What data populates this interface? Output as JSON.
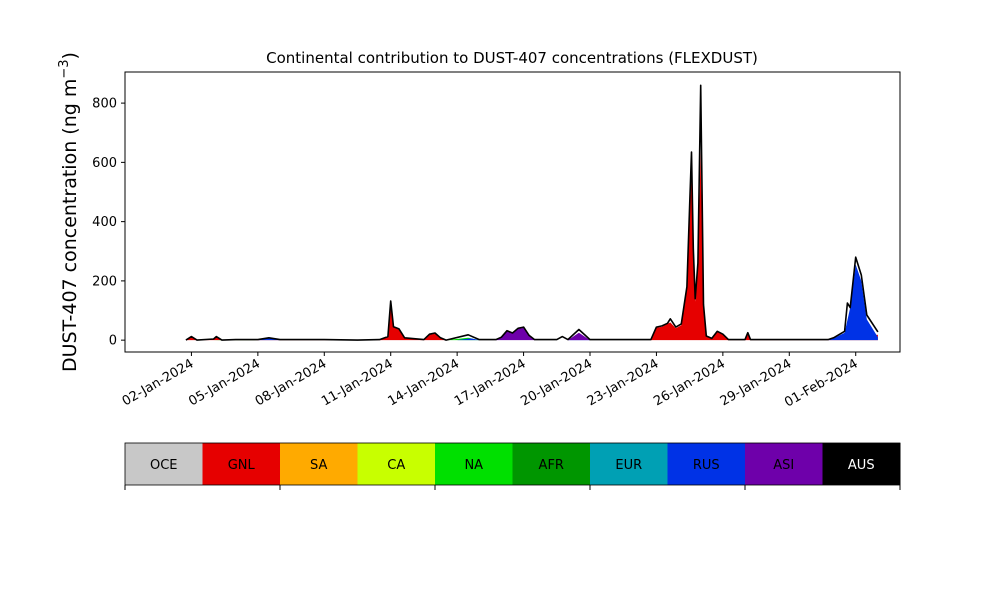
{
  "chart_data": {
    "type": "area",
    "stacked": true,
    "title": "Continental contribution to DUST-407 concentrations (FLEXDUST)",
    "ylabel": "DUST-407 concentration (ng m",
    "ylabel_unit_exponent": "−3",
    "ylabel_close": ")",
    "xlabel": "",
    "ylim": [
      -40,
      905
    ],
    "yticks": [
      0,
      200,
      400,
      600,
      800
    ],
    "xlim": [
      "2023-12-30",
      "2024-02-03"
    ],
    "xtick_labels": [
      "02-Jan-2024",
      "05-Jan-2024",
      "08-Jan-2024",
      "11-Jan-2024",
      "14-Jan-2024",
      "17-Jan-2024",
      "20-Jan-2024",
      "23-Jan-2024",
      "26-Jan-2024",
      "29-Jan-2024",
      "01-Feb-2024"
    ],
    "xtick_dates": [
      "2024-01-02",
      "2024-01-05",
      "2024-01-08",
      "2024-01-11",
      "2024-01-14",
      "2024-01-17",
      "2024-01-20",
      "2024-01-23",
      "2024-01-26",
      "2024-01-29",
      "2024-02-01"
    ],
    "grid": false,
    "series": [
      {
        "name": "GNL",
        "color": "#e60000",
        "points": [
          [
            "2024-01-01T18:00",
            0
          ],
          [
            "2024-01-02T00:00",
            12
          ],
          [
            "2024-01-02T06:00",
            0
          ],
          [
            "2024-01-03T00:00",
            4
          ],
          [
            "2024-01-03T03:00",
            12
          ],
          [
            "2024-01-03T09:00",
            0
          ],
          [
            "2024-01-05T00:00",
            2
          ],
          [
            "2024-01-09T12:00",
            0
          ],
          [
            "2024-01-10T12:00",
            2
          ],
          [
            "2024-01-10T21:00",
            12
          ],
          [
            "2024-01-11T00:00",
            118
          ],
          [
            "2024-01-11T03:00",
            45
          ],
          [
            "2024-01-11T09:00",
            38
          ],
          [
            "2024-01-11T15:00",
            8
          ],
          [
            "2024-01-12T12:00",
            2
          ],
          [
            "2024-01-12T18:00",
            18
          ],
          [
            "2024-01-13T00:00",
            22
          ],
          [
            "2024-01-13T06:00",
            8
          ],
          [
            "2024-01-13T12:00",
            0
          ],
          [
            "2024-01-22T18:00",
            0
          ],
          [
            "2024-01-23T00:00",
            42
          ],
          [
            "2024-01-23T06:00",
            45
          ],
          [
            "2024-01-23T12:00",
            55
          ],
          [
            "2024-01-23T15:00",
            60
          ],
          [
            "2024-01-23T21:00",
            40
          ],
          [
            "2024-01-24T03:00",
            50
          ],
          [
            "2024-01-24T09:00",
            170
          ],
          [
            "2024-01-24T12:00",
            420
          ],
          [
            "2024-01-24T14:00",
            560
          ],
          [
            "2024-01-24T16:00",
            300
          ],
          [
            "2024-01-24T18:00",
            130
          ],
          [
            "2024-01-24T21:00",
            250
          ],
          [
            "2024-01-25T00:00",
            640
          ],
          [
            "2024-01-25T03:00",
            110
          ],
          [
            "2024-01-25T06:00",
            12
          ],
          [
            "2024-01-25T12:00",
            5
          ],
          [
            "2024-01-25T18:00",
            28
          ],
          [
            "2024-01-26T00:00",
            18
          ],
          [
            "2024-01-26T06:00",
            2
          ],
          [
            "2024-01-27T00:00",
            2
          ],
          [
            "2024-01-27T03:00",
            20
          ],
          [
            "2024-01-27T06:00",
            2
          ],
          [
            "2024-01-31T12:00",
            2
          ],
          [
            "2024-02-01T00:00",
            15
          ],
          [
            "2024-02-01T12:00",
            15
          ],
          [
            "2024-02-02T00:00",
            18
          ]
        ]
      },
      {
        "name": "NA",
        "color": "#00e000",
        "points": [
          [
            "2024-01-03T00:00",
            0
          ],
          [
            "2024-01-04T00:00",
            2
          ],
          [
            "2024-01-05T00:00",
            0
          ],
          [
            "2024-01-13T12:00",
            0
          ],
          [
            "2024-01-14T12:00",
            8
          ],
          [
            "2024-01-15T00:00",
            0
          ]
        ]
      },
      {
        "name": "RUS",
        "color": "#0032e6",
        "points": [
          [
            "2024-01-05T00:00",
            0
          ],
          [
            "2024-01-05T12:00",
            8
          ],
          [
            "2024-01-06T00:00",
            0
          ],
          [
            "2024-01-14T00:00",
            0
          ],
          [
            "2024-01-14T15:00",
            6
          ],
          [
            "2024-01-15T00:00",
            0
          ],
          [
            "2024-01-19T00:00",
            0
          ],
          [
            "2024-01-19T12:00",
            8
          ],
          [
            "2024-01-20T00:00",
            0
          ],
          [
            "2024-01-30T18:00",
            0
          ],
          [
            "2024-01-31T00:00",
            6
          ],
          [
            "2024-01-31T12:00",
            25
          ],
          [
            "2024-01-31T18:00",
            110
          ],
          [
            "2024-02-01T00:00",
            255
          ],
          [
            "2024-02-01T06:00",
            200
          ],
          [
            "2024-02-01T12:00",
            70
          ],
          [
            "2024-02-02T00:00",
            10
          ]
        ]
      },
      {
        "name": "ASI",
        "color": "#6e00aa",
        "points": [
          [
            "2024-01-15T18:00",
            0
          ],
          [
            "2024-01-16T00:00",
            8
          ],
          [
            "2024-01-16T06:00",
            30
          ],
          [
            "2024-01-16T12:00",
            22
          ],
          [
            "2024-01-16T18:00",
            38
          ],
          [
            "2024-01-17T00:00",
            42
          ],
          [
            "2024-01-17T06:00",
            15
          ],
          [
            "2024-01-17T12:00",
            0
          ],
          [
            "2024-01-19T00:00",
            0
          ],
          [
            "2024-01-19T12:00",
            25
          ],
          [
            "2024-01-20T00:00",
            0
          ]
        ]
      }
    ],
    "total": {
      "name": "AUS",
      "color": "#000000",
      "points": [
        [
          "2024-01-01T18:00",
          0
        ],
        [
          "2024-01-02T00:00",
          12
        ],
        [
          "2024-01-02T06:00",
          0
        ],
        [
          "2024-01-03T00:00",
          4
        ],
        [
          "2024-01-03T03:00",
          12
        ],
        [
          "2024-01-03T09:00",
          0
        ],
        [
          "2024-01-04T00:00",
          2
        ],
        [
          "2024-01-05T00:00",
          2
        ],
        [
          "2024-01-05T12:00",
          8
        ],
        [
          "2024-01-06T00:00",
          2
        ],
        [
          "2024-01-08T00:00",
          2
        ],
        [
          "2024-01-09T12:00",
          0
        ],
        [
          "2024-01-10T12:00",
          2
        ],
        [
          "2024-01-10T21:00",
          12
        ],
        [
          "2024-01-11T00:00",
          132
        ],
        [
          "2024-01-11T03:00",
          45
        ],
        [
          "2024-01-11T09:00",
          38
        ],
        [
          "2024-01-11T15:00",
          8
        ],
        [
          "2024-01-12T12:00",
          2
        ],
        [
          "2024-01-12T18:00",
          20
        ],
        [
          "2024-01-13T00:00",
          24
        ],
        [
          "2024-01-13T06:00",
          8
        ],
        [
          "2024-01-13T12:00",
          0
        ],
        [
          "2024-01-14T12:00",
          18
        ],
        [
          "2024-01-15T00:00",
          2
        ],
        [
          "2024-01-15T18:00",
          2
        ],
        [
          "2024-01-16T00:00",
          10
        ],
        [
          "2024-01-16T06:00",
          32
        ],
        [
          "2024-01-16T12:00",
          24
        ],
        [
          "2024-01-16T18:00",
          40
        ],
        [
          "2024-01-17T00:00",
          44
        ],
        [
          "2024-01-17T06:00",
          16
        ],
        [
          "2024-01-17T12:00",
          2
        ],
        [
          "2024-01-18T12:00",
          2
        ],
        [
          "2024-01-18T18:00",
          12
        ],
        [
          "2024-01-19T00:00",
          2
        ],
        [
          "2024-01-19T12:00",
          36
        ],
        [
          "2024-01-20T00:00",
          2
        ],
        [
          "2024-01-22T18:00",
          2
        ],
        [
          "2024-01-23T00:00",
          44
        ],
        [
          "2024-01-23T06:00",
          48
        ],
        [
          "2024-01-23T12:00",
          57
        ],
        [
          "2024-01-23T15:00",
          72
        ],
        [
          "2024-01-23T21:00",
          44
        ],
        [
          "2024-01-24T03:00",
          55
        ],
        [
          "2024-01-24T09:00",
          180
        ],
        [
          "2024-01-24T12:00",
          450
        ],
        [
          "2024-01-24T14:00",
          635
        ],
        [
          "2024-01-24T16:00",
          310
        ],
        [
          "2024-01-24T18:00",
          140
        ],
        [
          "2024-01-24T21:00",
          260
        ],
        [
          "2024-01-25T00:00",
          860
        ],
        [
          "2024-01-25T03:00",
          120
        ],
        [
          "2024-01-25T06:00",
          14
        ],
        [
          "2024-01-25T12:00",
          6
        ],
        [
          "2024-01-25T18:00",
          30
        ],
        [
          "2024-01-26T00:00",
          20
        ],
        [
          "2024-01-26T06:00",
          2
        ],
        [
          "2024-01-27T00:00",
          2
        ],
        [
          "2024-01-27T03:00",
          25
        ],
        [
          "2024-01-27T06:00",
          2
        ],
        [
          "2024-01-30T18:00",
          2
        ],
        [
          "2024-01-31T00:00",
          8
        ],
        [
          "2024-01-31T12:00",
          30
        ],
        [
          "2024-01-31T15:00",
          125
        ],
        [
          "2024-01-31T18:00",
          110
        ],
        [
          "2024-02-01T00:00",
          280
        ],
        [
          "2024-02-01T06:00",
          220
        ],
        [
          "2024-02-01T12:00",
          85
        ],
        [
          "2024-02-02T00:00",
          28
        ]
      ]
    },
    "legend": {
      "placement": "bottom",
      "entries": [
        {
          "label": "OCE",
          "color": "#c8c8c8",
          "text_color": "#000000"
        },
        {
          "label": "GNL",
          "color": "#e60000",
          "text_color": "#000000"
        },
        {
          "label": "SA",
          "color": "#ffaa00",
          "text_color": "#000000"
        },
        {
          "label": "CA",
          "color": "#c8ff00",
          "text_color": "#000000"
        },
        {
          "label": "NA",
          "color": "#00e000",
          "text_color": "#000000"
        },
        {
          "label": "AFR",
          "color": "#009600",
          "text_color": "#000000"
        },
        {
          "label": "EUR",
          "color": "#00a0b4",
          "text_color": "#000000"
        },
        {
          "label": "RUS",
          "color": "#0032e6",
          "text_color": "#000000"
        },
        {
          "label": "ASI",
          "color": "#6e00aa",
          "text_color": "#000000"
        },
        {
          "label": "AUS",
          "color": "#000000",
          "text_color": "#ffffff"
        }
      ]
    }
  }
}
